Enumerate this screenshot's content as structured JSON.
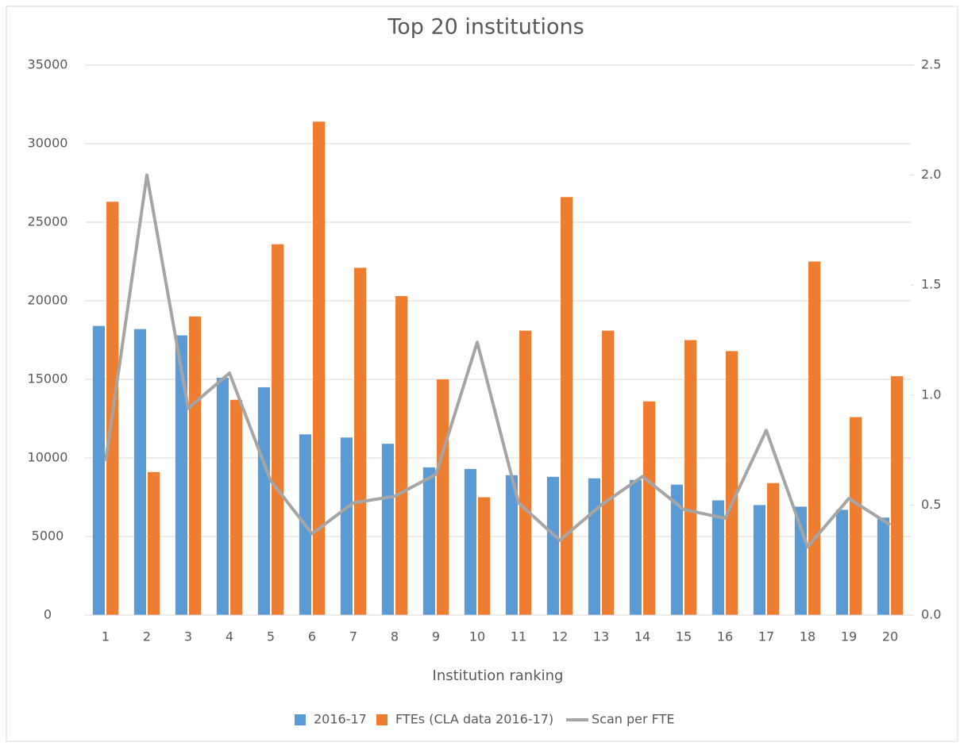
{
  "chart_data": {
    "type": "bar",
    "title": "Top 20 institutions",
    "x_label": "Institution ranking",
    "categories": [
      "1",
      "2",
      "3",
      "4",
      "5",
      "6",
      "7",
      "8",
      "9",
      "10",
      "11",
      "12",
      "13",
      "14",
      "15",
      "16",
      "17",
      "18",
      "19",
      "20"
    ],
    "series": [
      {
        "name": "2016-17",
        "type": "bar",
        "color": "#5b9bd5",
        "values": [
          18400,
          18200,
          17800,
          15100,
          14500,
          11500,
          11300,
          10900,
          9400,
          9300,
          8900,
          8800,
          8700,
          8600,
          8300,
          7300,
          7000,
          6900,
          6700,
          6200
        ]
      },
      {
        "name": "FTEs (CLA data 2016-17)",
        "type": "bar",
        "color": "#ed7d31",
        "values": [
          26300,
          9100,
          19000,
          13700,
          23600,
          31400,
          22100,
          20300,
          15000,
          7500,
          18100,
          26600,
          18100,
          13600,
          17500,
          16800,
          8400,
          22500,
          12600,
          15200
        ]
      },
      {
        "name": "Scan per FTE",
        "type": "line",
        "axis": "y2",
        "color": "#a5a5a5",
        "values": [
          0.7,
          2.0,
          0.94,
          1.1,
          0.61,
          0.37,
          0.51,
          0.54,
          0.64,
          1.24,
          0.51,
          0.34,
          0.5,
          0.63,
          0.48,
          0.44,
          0.84,
          0.31,
          0.53,
          0.41
        ]
      }
    ],
    "ylim": [
      0,
      35000
    ],
    "yticks": [
      0,
      5000,
      10000,
      15000,
      20000,
      25000,
      30000,
      35000
    ],
    "y2lim": [
      0,
      2.5
    ],
    "y2ticks": [
      {
        "value": 0,
        "label": "0.0"
      },
      {
        "value": 0.5,
        "label": "0.5"
      },
      {
        "value": 1,
        "label": "1.0"
      },
      {
        "value": 1.5,
        "label": "1.5"
      },
      {
        "value": 2,
        "label": "2.0"
      },
      {
        "value": 2.5,
        "label": "2.5"
      }
    ],
    "grid": true,
    "legend": "bottom"
  }
}
